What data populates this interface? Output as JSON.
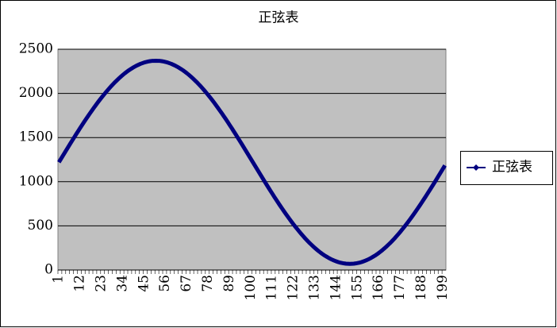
{
  "chart_data": {
    "type": "line",
    "title": "正弦表",
    "categories": [
      1,
      null,
      null,
      null,
      null,
      null,
      null,
      null,
      null,
      null,
      null,
      12,
      null,
      null,
      null,
      null,
      null,
      null,
      null,
      null,
      null,
      null,
      23,
      null,
      null,
      null,
      null,
      null,
      null,
      null,
      null,
      null,
      null,
      34,
      null,
      null,
      null,
      null,
      null,
      null,
      null,
      null,
      null,
      null,
      45,
      null,
      null,
      null,
      null,
      null,
      null,
      null,
      null,
      null,
      null,
      56,
      null,
      null,
      null,
      null,
      null,
      null,
      null,
      null,
      null,
      null,
      67,
      null,
      null,
      null,
      null,
      null,
      null,
      null,
      null,
      null,
      null,
      78,
      null,
      null,
      null,
      null,
      null,
      null,
      null,
      null,
      null,
      null,
      89,
      null,
      null,
      null,
      null,
      null,
      null,
      null,
      null,
      null,
      null,
      100,
      null,
      null,
      null,
      null,
      null,
      null,
      null,
      null,
      null,
      null,
      111,
      null,
      null,
      null,
      null,
      null,
      null,
      null,
      null,
      null,
      null,
      122,
      null,
      null,
      null,
      null,
      null,
      null,
      null,
      null,
      null,
      null,
      133,
      null,
      null,
      null,
      null,
      null,
      null,
      null,
      null,
      null,
      null,
      144,
      null,
      null,
      null,
      null,
      null,
      null,
      null,
      null,
      null,
      null,
      155,
      null,
      null,
      null,
      null,
      null,
      null,
      null,
      null,
      null,
      null,
      166,
      null,
      null,
      null,
      null,
      null,
      null,
      null,
      null,
      null,
      null,
      177,
      null,
      null,
      null,
      null,
      null,
      null,
      null,
      null,
      null,
      null,
      188,
      null,
      null,
      null,
      null,
      null,
      null,
      null,
      null,
      null,
      null,
      199,
      null
    ],
    "series": [
      {
        "name": "正弦表",
        "color": "#000080",
        "values": [
          1220,
          1256,
          1292,
          1328,
          1364,
          1400,
          1436,
          1471,
          1506,
          1541,
          1575,
          1610,
          1643,
          1677,
          1710,
          1742,
          1774,
          1805,
          1836,
          1866,
          1896,
          1925,
          1953,
          1980,
          2007,
          2033,
          2058,
          2083,
          2106,
          2129,
          2150,
          2171,
          2191,
          2210,
          2228,
          2245,
          2261,
          2275,
          2289,
          2302,
          2314,
          2324,
          2334,
          2342,
          2350,
          2356,
          2361,
          2365,
          2368,
          2369,
          2370,
          2369,
          2368,
          2365,
          2361,
          2356,
          2350,
          2342,
          2334,
          2324,
          2314,
          2302,
          2289,
          2275,
          2261,
          2245,
          2228,
          2210,
          2191,
          2171,
          2150,
          2129,
          2106,
          2083,
          2058,
          2033,
          2007,
          1980,
          1953,
          1925,
          1896,
          1866,
          1836,
          1805,
          1774,
          1742,
          1710,
          1677,
          1643,
          1610,
          1575,
          1541,
          1506,
          1471,
          1436,
          1400,
          1364,
          1328,
          1292,
          1256,
          1220,
          1184,
          1148,
          1112,
          1076,
          1040,
          1004,
          969,
          934,
          899,
          865,
          830,
          797,
          763,
          730,
          698,
          666,
          635,
          604,
          574,
          544,
          515,
          487,
          460,
          433,
          407,
          382,
          357,
          334,
          311,
          290,
          269,
          249,
          230,
          212,
          195,
          179,
          164,
          151,
          138,
          126,
          116,
          106,
          98,
          90,
          84,
          79,
          75,
          72,
          71,
          70,
          71,
          72,
          75,
          79,
          84,
          90,
          98,
          106,
          116,
          126,
          138,
          151,
          164,
          179,
          195,
          212,
          230,
          249,
          269,
          290,
          311,
          334,
          357,
          382,
          407,
          433,
          460,
          487,
          515,
          544,
          574,
          604,
          635,
          666,
          698,
          730,
          763,
          797,
          830,
          865,
          899,
          934,
          969,
          1004,
          1040,
          1076,
          1112,
          1148,
          1184
        ]
      }
    ],
    "ylim": [
      0,
      2500
    ],
    "yticks": [
      0,
      500,
      1000,
      1500,
      2000,
      2500
    ],
    "grid": true,
    "legend": "right"
  }
}
